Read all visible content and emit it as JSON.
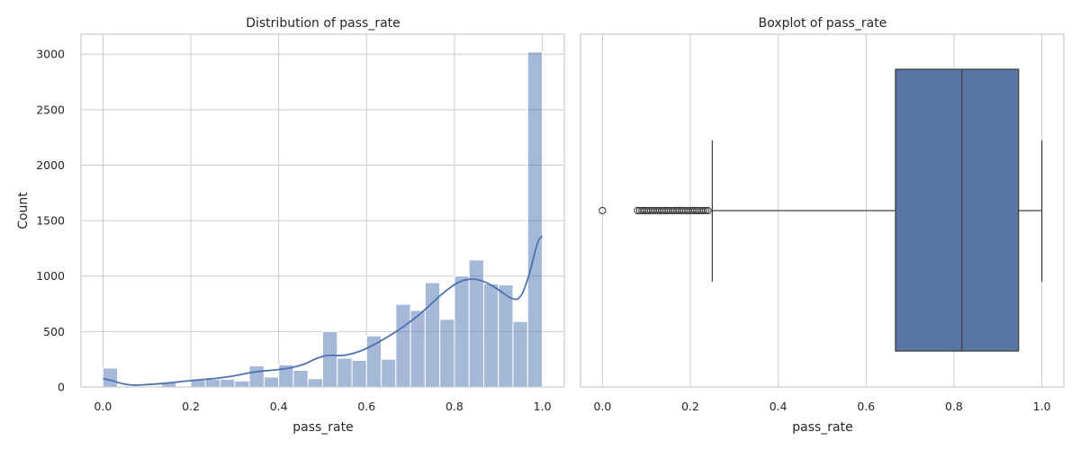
{
  "chart_data": [
    {
      "type": "bar",
      "title": "Distribution of pass_rate",
      "xlabel": "pass_rate",
      "ylabel": "Count",
      "xlim": [
        -0.05,
        1.05
      ],
      "ylim": [
        0,
        3180
      ],
      "xticks": [
        0.0,
        0.2,
        0.4,
        0.6,
        0.8,
        1.0
      ],
      "xtick_labels": [
        "0.0",
        "0.2",
        "0.4",
        "0.6",
        "0.8",
        "1.0"
      ],
      "yticks": [
        0,
        500,
        1000,
        1500,
        2000,
        2500,
        3000
      ],
      "ytick_labels": [
        "0",
        "500",
        "1000",
        "1500",
        "2000",
        "2500",
        "3000"
      ],
      "grid": true,
      "bin_width": 0.0333,
      "bins": [
        {
          "x0": 0.0,
          "count": 170
        },
        {
          "x0": 0.0333,
          "count": 0
        },
        {
          "x0": 0.0667,
          "count": 0
        },
        {
          "x0": 0.1,
          "count": 0
        },
        {
          "x0": 0.1333,
          "count": 40
        },
        {
          "x0": 0.1667,
          "count": 0
        },
        {
          "x0": 0.2,
          "count": 60
        },
        {
          "x0": 0.2333,
          "count": 70
        },
        {
          "x0": 0.2667,
          "count": 70
        },
        {
          "x0": 0.3,
          "count": 55
        },
        {
          "x0": 0.3333,
          "count": 190
        },
        {
          "x0": 0.3667,
          "count": 90
        },
        {
          "x0": 0.4,
          "count": 200
        },
        {
          "x0": 0.4333,
          "count": 150
        },
        {
          "x0": 0.4667,
          "count": 75
        },
        {
          "x0": 0.5,
          "count": 500
        },
        {
          "x0": 0.5333,
          "count": 260
        },
        {
          "x0": 0.5667,
          "count": 240
        },
        {
          "x0": 0.6,
          "count": 460
        },
        {
          "x0": 0.6333,
          "count": 250
        },
        {
          "x0": 0.6667,
          "count": 745
        },
        {
          "x0": 0.7,
          "count": 690
        },
        {
          "x0": 0.7333,
          "count": 940
        },
        {
          "x0": 0.7667,
          "count": 610
        },
        {
          "x0": 0.8,
          "count": 1000
        },
        {
          "x0": 0.8333,
          "count": 1145
        },
        {
          "x0": 0.8667,
          "count": 930
        },
        {
          "x0": 0.9,
          "count": 920
        },
        {
          "x0": 0.9333,
          "count": 590
        },
        {
          "x0": 0.9667,
          "count": 3020
        }
      ],
      "kde": [
        [
          0.0,
          75
        ],
        [
          0.02,
          60
        ],
        [
          0.04,
          32
        ],
        [
          0.06,
          18
        ],
        [
          0.08,
          16
        ],
        [
          0.1,
          22
        ],
        [
          0.14,
          32
        ],
        [
          0.18,
          50
        ],
        [
          0.22,
          65
        ],
        [
          0.26,
          78
        ],
        [
          0.3,
          100
        ],
        [
          0.34,
          135
        ],
        [
          0.38,
          150
        ],
        [
          0.42,
          165
        ],
        [
          0.46,
          205
        ],
        [
          0.48,
          250
        ],
        [
          0.51,
          290
        ],
        [
          0.54,
          280
        ],
        [
          0.57,
          300
        ],
        [
          0.6,
          345
        ],
        [
          0.63,
          410
        ],
        [
          0.66,
          480
        ],
        [
          0.69,
          560
        ],
        [
          0.72,
          650
        ],
        [
          0.75,
          760
        ],
        [
          0.78,
          870
        ],
        [
          0.81,
          950
        ],
        [
          0.84,
          980
        ],
        [
          0.87,
          950
        ],
        [
          0.9,
          880
        ],
        [
          0.93,
          790
        ],
        [
          0.95,
          790
        ],
        [
          0.97,
          1000
        ],
        [
          0.99,
          1330
        ],
        [
          1.0,
          1360
        ]
      ],
      "colors": {
        "bar": "#4c72b0",
        "bar_opacity": 0.5,
        "kde": "#4c72b0"
      }
    },
    {
      "type": "boxplot",
      "title": "Boxplot of pass_rate",
      "xlabel": "pass_rate",
      "xlim": [
        -0.05,
        1.05
      ],
      "xticks": [
        0.0,
        0.2,
        0.4,
        0.6,
        0.8,
        1.0
      ],
      "xtick_labels": [
        "0.0",
        "0.2",
        "0.4",
        "0.6",
        "0.8",
        "1.0"
      ],
      "grid": true,
      "stats": {
        "whisker_low": 0.25,
        "q1": 0.667,
        "median": 0.818,
        "q3": 0.947,
        "whisker_high": 1.0
      },
      "outliers": [
        0.0,
        0.08,
        0.085,
        0.09,
        0.095,
        0.1,
        0.105,
        0.11,
        0.115,
        0.12,
        0.125,
        0.13,
        0.135,
        0.14,
        0.145,
        0.15,
        0.155,
        0.16,
        0.165,
        0.17,
        0.175,
        0.18,
        0.185,
        0.19,
        0.195,
        0.2,
        0.205,
        0.21,
        0.215,
        0.22,
        0.225,
        0.23,
        0.235,
        0.24
      ],
      "colors": {
        "box": "#5975a4",
        "line": "#404040"
      }
    }
  ]
}
